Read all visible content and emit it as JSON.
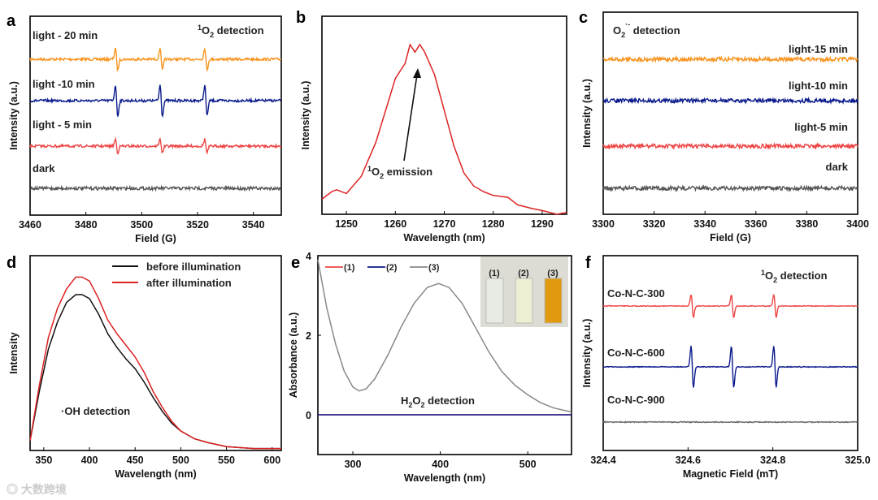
{
  "watermark": "大数跨境",
  "chart_data": [
    {
      "id": "a",
      "type": "line",
      "xlabel": "Field (G)",
      "ylabel": "Intensity (a.u.)",
      "xlim": [
        3460,
        3550
      ],
      "xticks": [
        "3460",
        "3480",
        "3500",
        "3520",
        "3540"
      ],
      "annotation": "1O2 detection",
      "ann": {
        "sup": "1",
        "main": "O",
        "sub": "2",
        "rest": " detection"
      },
      "peaks": [
        3491,
        3507,
        3523
      ],
      "width": 0.6,
      "series": [
        {
          "name": "light - 20 min",
          "color": "#f7931e",
          "amplitude": 0.65,
          "offset": 3
        },
        {
          "name": "light -10 min",
          "color": "#0a1a8c",
          "amplitude": 0.9,
          "offset": 2
        },
        {
          "name": "light - 5 min",
          "color": "#ee4444",
          "amplitude": 0.4,
          "offset": 1
        },
        {
          "name": "dark",
          "color": "#555555",
          "amplitude": 0,
          "offset": 0
        }
      ]
    },
    {
      "id": "b",
      "type": "line",
      "xlabel": "Wavelength (nm)",
      "ylabel": "Intensity (a.u.)",
      "xlim": [
        1245,
        1295
      ],
      "ylim": [
        0,
        1.05
      ],
      "xticks": [
        "1250",
        "1260",
        "1270",
        "1280",
        "1290"
      ],
      "ann": {
        "sup": "1",
        "main": "O",
        "sub": "2",
        "rest": " emission"
      },
      "series": [
        {
          "name": "1O2 emission",
          "color": "#dd2222",
          "x": [
            1245,
            1247,
            1248,
            1250,
            1253,
            1256,
            1258,
            1260,
            1262,
            1263,
            1264,
            1265,
            1266,
            1268,
            1270,
            1272,
            1274,
            1276,
            1278,
            1280,
            1283,
            1285,
            1288,
            1290,
            1293,
            1295
          ],
          "y": [
            0.08,
            0.12,
            0.13,
            0.11,
            0.2,
            0.38,
            0.55,
            0.72,
            0.8,
            0.9,
            0.86,
            0.9,
            0.86,
            0.74,
            0.55,
            0.36,
            0.22,
            0.15,
            0.12,
            0.1,
            0.09,
            0.05,
            0.03,
            0.02,
            0.0,
            0.01
          ]
        }
      ]
    },
    {
      "id": "c",
      "type": "line",
      "xlabel": "Field (G)",
      "ylabel": "Intensity (a.u.)",
      "xlim": [
        3300,
        3400
      ],
      "xticks": [
        "3300",
        "3320",
        "3340",
        "3360",
        "3380",
        "3400"
      ],
      "ann": {
        "main": "O",
        "sub": "2",
        "sup": "·-",
        "rest": " detection"
      },
      "series": [
        {
          "name": "light-15 min",
          "color": "#f7931e",
          "offset": 3
        },
        {
          "name": "light-10 min",
          "color": "#0a1a8c",
          "offset": 2
        },
        {
          "name": "light-5 min",
          "color": "#ee4444",
          "offset": 1
        },
        {
          "name": "dark",
          "color": "#555555",
          "offset": 0
        }
      ]
    },
    {
      "id": "d",
      "type": "line",
      "xlabel": "Wavelength (nm)",
      "ylabel": "Intensity",
      "xlim": [
        335,
        610
      ],
      "ylim": [
        0,
        1
      ],
      "xticks": [
        "350",
        "400",
        "450",
        "500",
        "550",
        "600"
      ],
      "annotation": "·OH detection",
      "series": [
        {
          "name": "before illumination",
          "color": "#111111",
          "x": [
            335,
            345,
            355,
            365,
            375,
            385,
            392,
            400,
            410,
            420,
            430,
            440,
            450,
            460,
            470,
            480,
            490,
            500,
            515,
            530,
            550,
            580,
            610
          ],
          "y": [
            0.05,
            0.3,
            0.52,
            0.66,
            0.76,
            0.8,
            0.8,
            0.78,
            0.7,
            0.6,
            0.53,
            0.47,
            0.42,
            0.35,
            0.27,
            0.2,
            0.14,
            0.1,
            0.06,
            0.04,
            0.02,
            0.01,
            0.01
          ]
        },
        {
          "name": "after illumination",
          "color": "#dd2222",
          "x": [
            335,
            345,
            355,
            365,
            375,
            385,
            392,
            400,
            410,
            420,
            430,
            440,
            450,
            460,
            470,
            480,
            490,
            500,
            515,
            530,
            550,
            580,
            610
          ],
          "y": [
            0.05,
            0.33,
            0.58,
            0.73,
            0.83,
            0.89,
            0.89,
            0.87,
            0.78,
            0.67,
            0.6,
            0.54,
            0.48,
            0.4,
            0.3,
            0.22,
            0.15,
            0.1,
            0.06,
            0.04,
            0.02,
            0.01,
            0.01
          ]
        }
      ]
    },
    {
      "id": "e",
      "type": "line",
      "xlabel": "Wavelength (nm)",
      "ylabel": "Absorbance (a.u.)",
      "xlim": [
        260,
        550
      ],
      "ylim": [
        -1,
        4
      ],
      "xticks": [
        "300",
        "400",
        "500"
      ],
      "yticks": [
        "0",
        "2",
        "4"
      ],
      "ann": {
        "main": "H",
        "sub": "2",
        "main2": "O",
        "sub2": "2",
        "rest": " detection"
      },
      "inset_labels": [
        "(1)",
        "(2)",
        "(3)"
      ],
      "series": [
        {
          "name": "(1)",
          "color": "#ee4444",
          "x": [
            260,
            550
          ],
          "y": [
            0,
            0
          ]
        },
        {
          "name": "(2)",
          "color": "#0a1a8c",
          "x": [
            260,
            550
          ],
          "y": [
            0,
            0
          ]
        },
        {
          "name": "(3)",
          "color": "#888888",
          "x": [
            260,
            265,
            270,
            280,
            290,
            300,
            307,
            315,
            325,
            340,
            355,
            370,
            385,
            398,
            410,
            425,
            440,
            455,
            470,
            485,
            500,
            515,
            530,
            550
          ],
          "y": [
            3.9,
            3.3,
            2.7,
            1.8,
            1.1,
            0.7,
            0.6,
            0.65,
            0.9,
            1.5,
            2.2,
            2.8,
            3.2,
            3.3,
            3.2,
            2.8,
            2.2,
            1.6,
            1.1,
            0.75,
            0.5,
            0.3,
            0.17,
            0.07
          ]
        }
      ]
    },
    {
      "id": "f",
      "type": "line",
      "xlabel": "Magnetic Field (mT)",
      "ylabel": "Intensity (a.u.)",
      "xlim": [
        324.4,
        325.0
      ],
      "xticks": [
        "324.4",
        "324.6",
        "324.8",
        "325.0"
      ],
      "ann": {
        "sup": "1",
        "main": "O",
        "sub": "2",
        "rest": " detection"
      },
      "peaks": [
        324.61,
        324.705,
        324.805
      ],
      "width": 0.004,
      "series": [
        {
          "name": "Co-N-C-300",
          "color": "#ee4444",
          "amplitude": 0.55,
          "offset": 2
        },
        {
          "name": "Co-N-C-600",
          "color": "#0a1a8c",
          "amplitude": 1.0,
          "offset": 1
        },
        {
          "name": "Co-N-C-900",
          "color": "#666666",
          "amplitude": 0,
          "offset": 0
        }
      ]
    }
  ]
}
